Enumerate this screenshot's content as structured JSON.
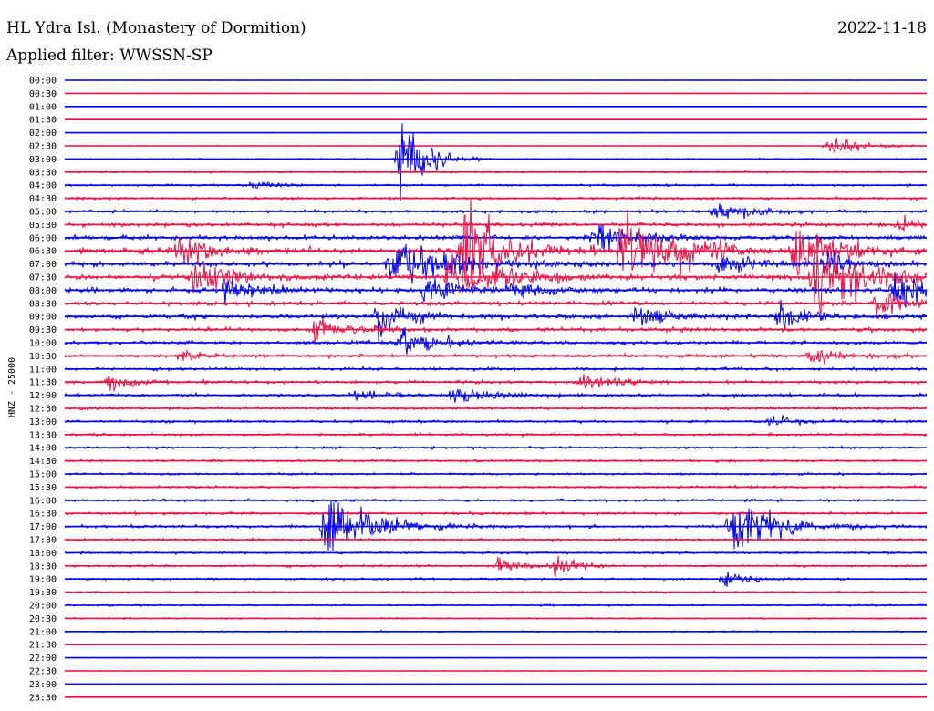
{
  "header": {
    "station": "HL Ydra Isl. (Monastery of Dormition)",
    "date": "2022-11-18",
    "filter": "Applied filter: WWSSN-SP"
  },
  "axis": {
    "ylabel": "HNZ - 25000"
  },
  "colors": {
    "even_trace": "#0000ee",
    "odd_trace": "#ee1144",
    "background": "#ffffff",
    "text": "#000000"
  },
  "chart_data": {
    "type": "helicorder",
    "title": "HL Ydra Isl. (Monastery of Dormition)",
    "date": "2022-11-18",
    "filter": "WWSSN-SP",
    "ylabel": "HNZ - 25000",
    "row_minutes": 30,
    "rows": [
      "00:00",
      "00:30",
      "01:00",
      "01:30",
      "02:00",
      "02:30",
      "03:00",
      "03:30",
      "04:00",
      "04:30",
      "05:00",
      "05:30",
      "06:00",
      "06:30",
      "07:00",
      "07:30",
      "08:00",
      "08:30",
      "09:00",
      "09:30",
      "10:00",
      "10:30",
      "11:00",
      "11:30",
      "12:00",
      "12:30",
      "13:00",
      "13:30",
      "14:00",
      "14:30",
      "15:00",
      "15:30",
      "16:00",
      "16:30",
      "17:00",
      "17:30",
      "18:00",
      "18:30",
      "19:00",
      "19:30",
      "20:00",
      "20:30",
      "21:00",
      "21:30",
      "22:00",
      "22:30",
      "23:00",
      "23:30"
    ],
    "noise_level": [
      0.2,
      0.3,
      0.3,
      0.3,
      0.4,
      0.4,
      1.0,
      1.2,
      1.5,
      1.8,
      2.0,
      2.5,
      3.0,
      3.5,
      3.5,
      3.5,
      3.2,
      3.0,
      2.8,
      2.6,
      2.4,
      2.2,
      2.0,
      2.0,
      2.2,
      2.0,
      1.8,
      1.8,
      1.6,
      1.5,
      1.5,
      1.6,
      1.8,
      1.8,
      2.0,
      1.8,
      1.6,
      1.5,
      1.4,
      1.2,
      1.2,
      1.0,
      0.9,
      0.6,
      0.5,
      0.4,
      0.3,
      0.3
    ],
    "events": [
      {
        "row": 14,
        "minute": 11.3,
        "amplitude": 46,
        "duration_min": 5
      },
      {
        "row": 13,
        "minute": 3.9,
        "amplitude": 30,
        "duration_min": 3
      },
      {
        "row": 15,
        "minute": 4.4,
        "amplitude": 28,
        "duration_min": 4
      },
      {
        "row": 16,
        "minute": 5.5,
        "amplitude": 22,
        "duration_min": 3
      },
      {
        "row": 23,
        "minute": 1.5,
        "amplitude": 14,
        "duration_min": 2
      },
      {
        "row": 13,
        "minute": 13.8,
        "amplitude": 70,
        "duration_min": 4
      },
      {
        "row": 6,
        "minute": 11.6,
        "amplitude": 90,
        "duration_min": 2
      },
      {
        "row": 18,
        "minute": 10.8,
        "amplitude": 35,
        "duration_min": 3
      },
      {
        "row": 20,
        "minute": 11.6,
        "amplitude": 28,
        "duration_min": 3
      },
      {
        "row": 15,
        "minute": 13.3,
        "amplitude": 40,
        "duration_min": 5
      },
      {
        "row": 16,
        "minute": 12.5,
        "amplitude": 20,
        "duration_min": 3
      },
      {
        "row": 24,
        "minute": 13.4,
        "amplitude": 16,
        "duration_min": 3
      },
      {
        "row": 19,
        "minute": 8.6,
        "amplitude": 20,
        "duration_min": 3
      },
      {
        "row": 16,
        "minute": 15.4,
        "amplitude": 18,
        "duration_min": 3
      },
      {
        "row": 13,
        "minute": 19.3,
        "amplitude": 55,
        "duration_min": 4
      },
      {
        "row": 18,
        "minute": 19.8,
        "amplitude": 20,
        "duration_min": 3
      },
      {
        "row": 12,
        "minute": 18.4,
        "amplitude": 32,
        "duration_min": 3
      },
      {
        "row": 13,
        "minute": 25.3,
        "amplitude": 40,
        "duration_min": 4
      },
      {
        "row": 14,
        "minute": 22.6,
        "amplitude": 22,
        "duration_min": 3
      },
      {
        "row": 15,
        "minute": 26.0,
        "amplitude": 60,
        "duration_min": 5
      },
      {
        "row": 16,
        "minute": 28.8,
        "amplitude": 30,
        "duration_min": 4
      },
      {
        "row": 13,
        "minute": 21.3,
        "amplitude": 25,
        "duration_min": 3
      },
      {
        "row": 17,
        "minute": 28.2,
        "amplitude": 22,
        "duration_min": 3
      },
      {
        "row": 18,
        "minute": 24.8,
        "amplitude": 25,
        "duration_min": 3
      },
      {
        "row": 14,
        "minute": 26.4,
        "amplitude": 18,
        "duration_min": 3
      },
      {
        "row": 21,
        "minute": 25.9,
        "amplitude": 14,
        "duration_min": 3
      },
      {
        "row": 5,
        "minute": 26.5,
        "amplitude": 18,
        "duration_min": 3
      },
      {
        "row": 23,
        "minute": 17.8,
        "amplitude": 16,
        "duration_min": 3
      },
      {
        "row": 34,
        "minute": 9.0,
        "amplitude": 55,
        "duration_min": 4
      },
      {
        "row": 34,
        "minute": 23.1,
        "amplitude": 45,
        "duration_min": 4
      },
      {
        "row": 37,
        "minute": 15.0,
        "amplitude": 16,
        "duration_min": 2
      },
      {
        "row": 37,
        "minute": 17.0,
        "amplitude": 18,
        "duration_min": 2
      },
      {
        "row": 38,
        "minute": 22.9,
        "amplitude": 16,
        "duration_min": 2
      },
      {
        "row": 26,
        "minute": 24.5,
        "amplitude": 12,
        "duration_min": 2
      },
      {
        "row": 8,
        "minute": 6.4,
        "amplitude": 10,
        "duration_min": 2
      },
      {
        "row": 10,
        "minute": 22.5,
        "amplitude": 18,
        "duration_min": 3
      },
      {
        "row": 11,
        "minute": 29.0,
        "amplitude": 10,
        "duration_min": 2
      },
      {
        "row": 21,
        "minute": 4.0,
        "amplitude": 12,
        "duration_min": 2
      },
      {
        "row": 24,
        "minute": 10.0,
        "amplitude": 10,
        "duration_min": 2
      }
    ]
  }
}
